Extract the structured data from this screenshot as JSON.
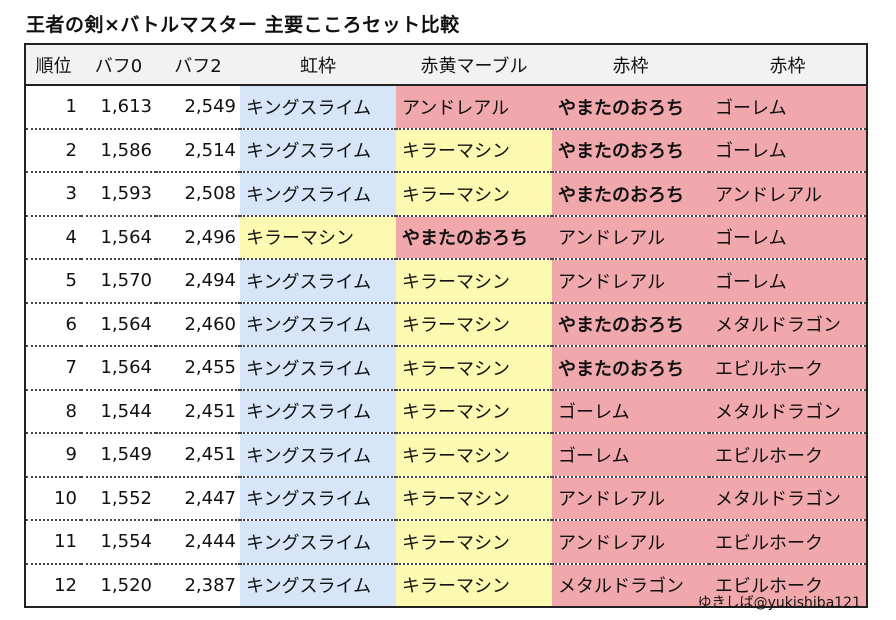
{
  "title": "王者の剣×バトルマスター 主要こころセット比較",
  "credit": "ゆきしば@yukishiba121",
  "colors": {
    "blue": "#d6e6f8",
    "yellow": "#fcfab0",
    "pink": "#f1a8ad",
    "header": "#f2f2f2"
  },
  "headers": [
    "順位",
    "バフ0",
    "バフ2",
    "虹枠",
    "赤黄マーブル",
    "赤枠",
    "赤枠"
  ],
  "rows": [
    {
      "rank": "1",
      "buff0": "1,613",
      "buff2": "2,549",
      "c1": "キングスライム",
      "c1_color": "blue",
      "c2": "アンドレアル",
      "c2_color": "pink",
      "c3": "やまたのおろち",
      "c4": "ゴーレム"
    },
    {
      "rank": "2",
      "buff0": "1,586",
      "buff2": "2,514",
      "c1": "キングスライム",
      "c1_color": "blue",
      "c2": "キラーマシン",
      "c2_color": "yellow",
      "c3": "やまたのおろち",
      "c4": "ゴーレム"
    },
    {
      "rank": "3",
      "buff0": "1,593",
      "buff2": "2,508",
      "c1": "キングスライム",
      "c1_color": "blue",
      "c2": "キラーマシン",
      "c2_color": "yellow",
      "c3": "やまたのおろち",
      "c4": "アンドレアル"
    },
    {
      "rank": "4",
      "buff0": "1,564",
      "buff2": "2,496",
      "c1": "キラーマシン",
      "c1_color": "yellow",
      "c2": "やまたのおろち",
      "c2_color": "pink",
      "c3": "アンドレアル",
      "c4": "ゴーレム"
    },
    {
      "rank": "5",
      "buff0": "1,570",
      "buff2": "2,494",
      "c1": "キングスライム",
      "c1_color": "blue",
      "c2": "キラーマシン",
      "c2_color": "yellow",
      "c3": "アンドレアル",
      "c4": "ゴーレム"
    },
    {
      "rank": "6",
      "buff0": "1,564",
      "buff2": "2,460",
      "c1": "キングスライム",
      "c1_color": "blue",
      "c2": "キラーマシン",
      "c2_color": "yellow",
      "c3": "やまたのおろち",
      "c4": "メタルドラゴン"
    },
    {
      "rank": "7",
      "buff0": "1,564",
      "buff2": "2,455",
      "c1": "キングスライム",
      "c1_color": "blue",
      "c2": "キラーマシン",
      "c2_color": "yellow",
      "c3": "やまたのおろち",
      "c4": "エビルホーク"
    },
    {
      "rank": "8",
      "buff0": "1,544",
      "buff2": "2,451",
      "c1": "キングスライム",
      "c1_color": "blue",
      "c2": "キラーマシン",
      "c2_color": "yellow",
      "c3": "ゴーレム",
      "c4": "メタルドラゴン"
    },
    {
      "rank": "9",
      "buff0": "1,549",
      "buff2": "2,451",
      "c1": "キングスライム",
      "c1_color": "blue",
      "c2": "キラーマシン",
      "c2_color": "yellow",
      "c3": "ゴーレム",
      "c4": "エビルホーク"
    },
    {
      "rank": "10",
      "buff0": "1,552",
      "buff2": "2,447",
      "c1": "キングスライム",
      "c1_color": "blue",
      "c2": "キラーマシン",
      "c2_color": "yellow",
      "c3": "アンドレアル",
      "c4": "メタルドラゴン"
    },
    {
      "rank": "11",
      "buff0": "1,554",
      "buff2": "2,444",
      "c1": "キングスライム",
      "c1_color": "blue",
      "c2": "キラーマシン",
      "c2_color": "yellow",
      "c3": "アンドレアル",
      "c4": "エビルホーク"
    },
    {
      "rank": "12",
      "buff0": "1,520",
      "buff2": "2,387",
      "c1": "キングスライム",
      "c1_color": "blue",
      "c2": "キラーマシン",
      "c2_color": "yellow",
      "c3": "メタルドラゴン",
      "c4": "エビルホーク"
    }
  ]
}
